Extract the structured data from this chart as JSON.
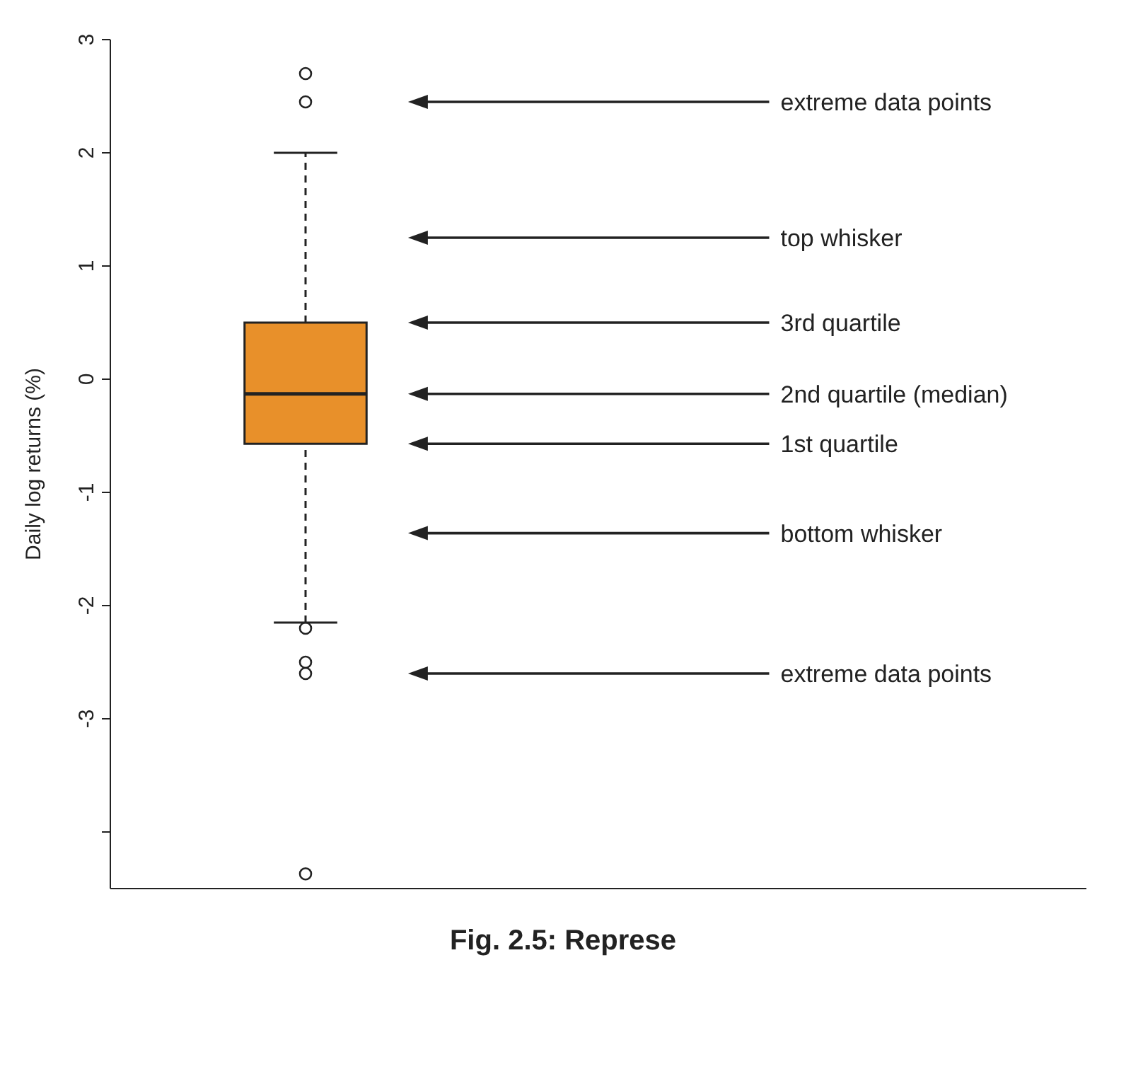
{
  "chart_data": {
    "type": "box",
    "ylabel": "Daily log returns (%)",
    "categories": [
      null
    ],
    "tick_labels": "y",
    "marker": "circle",
    "color": "#e8902a",
    "boxes": [
      {
        "low": -2.15,
        "q1": -0.57,
        "median": -0.13,
        "q3": 0.5,
        "high": 2.0,
        "outliers": [
          2.7,
          2.45,
          -2.2,
          -2.5,
          -2.6,
          -4.37
        ]
      }
    ],
    "ylim": [
      -4.5,
      3
    ],
    "yticks": [
      {
        "value": -4,
        "label": null
      },
      -3,
      -2,
      -1,
      0,
      1,
      2,
      3
    ],
    "annotations": [
      "extreme data points",
      "top whisker",
      "3rd quartile",
      "2nd quartile (median)",
      "1st quartile",
      "bottom whisker",
      "extreme data points",
      "Fig. 2.5: Represe"
    ]
  }
}
